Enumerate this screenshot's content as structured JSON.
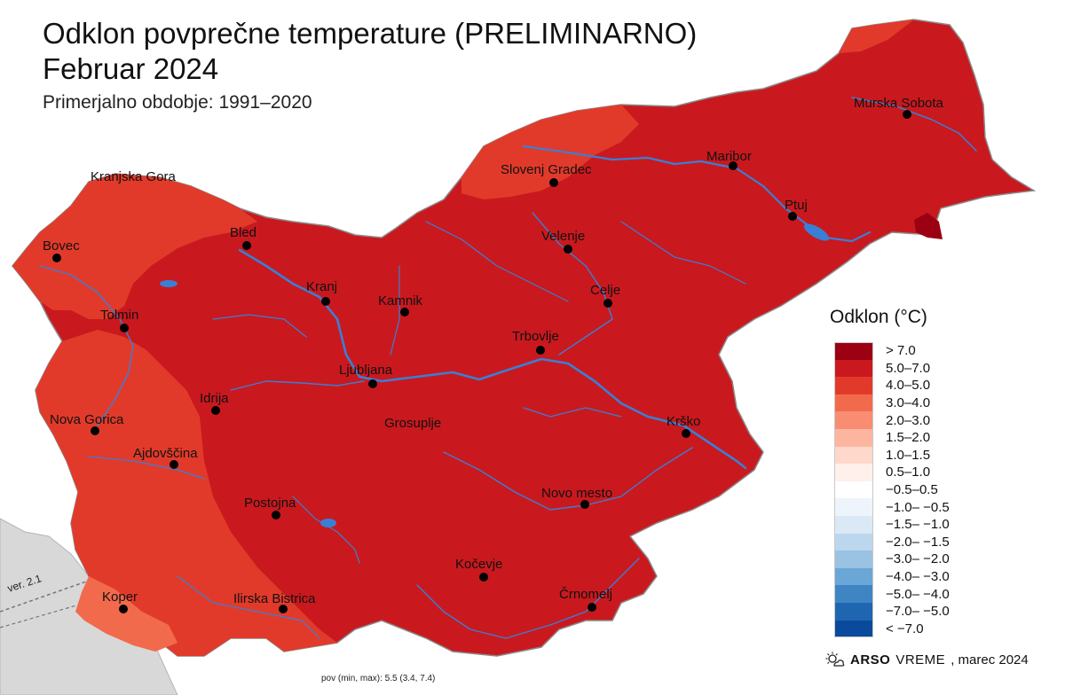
{
  "header": {
    "title_line1": "Odklon povprečne temperature (PRELIMINARNO)",
    "title_line2": "Februar 2024",
    "subtitle": "Primerjalno obdobje: 1991–2020"
  },
  "colors": {
    "main_fill": "#c9191e",
    "mid_fill": "#e23a2a",
    "light_fill": "#f26a4c",
    "dark_fill": "#9b0013",
    "river": "#3a7fd6",
    "neighbor_gray": "#d6d6d6"
  },
  "cities": [
    {
      "name": "Murska Sobota"
    },
    {
      "name": "Maribor"
    },
    {
      "name": "Slovenj Gradec"
    },
    {
      "name": "Ptuj"
    },
    {
      "name": "Velenje"
    },
    {
      "name": "Kranjska Gora"
    },
    {
      "name": "Bled"
    },
    {
      "name": "Bovec"
    },
    {
      "name": "Kranj"
    },
    {
      "name": "Kamnik"
    },
    {
      "name": "Celje"
    },
    {
      "name": "Tolmin"
    },
    {
      "name": "Trbovlje"
    },
    {
      "name": "Ljubljana"
    },
    {
      "name": "Idrija"
    },
    {
      "name": "Nova Gorica"
    },
    {
      "name": "Grosuplje"
    },
    {
      "name": "Krško"
    },
    {
      "name": "Ajdovščina"
    },
    {
      "name": "Novo mesto"
    },
    {
      "name": "Postojna"
    },
    {
      "name": "Kočevje"
    },
    {
      "name": "Koper"
    },
    {
      "name": "Ilirska Bistrica"
    },
    {
      "name": "Črnomelj"
    }
  ],
  "legend": {
    "title": "Odklon (°C)",
    "items": [
      {
        "label": "> 7.0",
        "color": "#9b0013"
      },
      {
        "label": "5.0–7.0",
        "color": "#c9191e"
      },
      {
        "label": "4.0–5.0",
        "color": "#e23a2a"
      },
      {
        "label": "3.0–4.0",
        "color": "#f26a4c"
      },
      {
        "label": "2.0–3.0",
        "color": "#f98d72"
      },
      {
        "label": "1.5–2.0",
        "color": "#fcb6a0"
      },
      {
        "label": "1.0–1.5",
        "color": "#fdd8cb"
      },
      {
        "label": "0.5–1.0",
        "color": "#fff0eb"
      },
      {
        "label": "−0.5–0.5",
        "color": "#ffffff"
      },
      {
        "label": "−1.0– −0.5",
        "color": "#eef4fb"
      },
      {
        "label": "−1.5– −1.0",
        "color": "#dbe8f6"
      },
      {
        "label": "−2.0– −1.5",
        "color": "#bcd6ee"
      },
      {
        "label": "−3.0– −2.0",
        "color": "#99c2e3"
      },
      {
        "label": "−4.0– −3.0",
        "color": "#6aa6d6"
      },
      {
        "label": "−5.0– −4.0",
        "color": "#3f85c4"
      },
      {
        "label": "−7.0– −5.0",
        "color": "#1f66b0"
      },
      {
        "label": "< −7.0",
        "color": "#0a4a9c"
      }
    ]
  },
  "credit": {
    "icon": "sun-cloud-icon",
    "brand_bold": "ARSO",
    "brand_light": "VREME",
    "date": ", marec 2024"
  },
  "footnote": "pov (min, max): 5.5 (3.4, 7.4)",
  "version": "ver. 2.1"
}
